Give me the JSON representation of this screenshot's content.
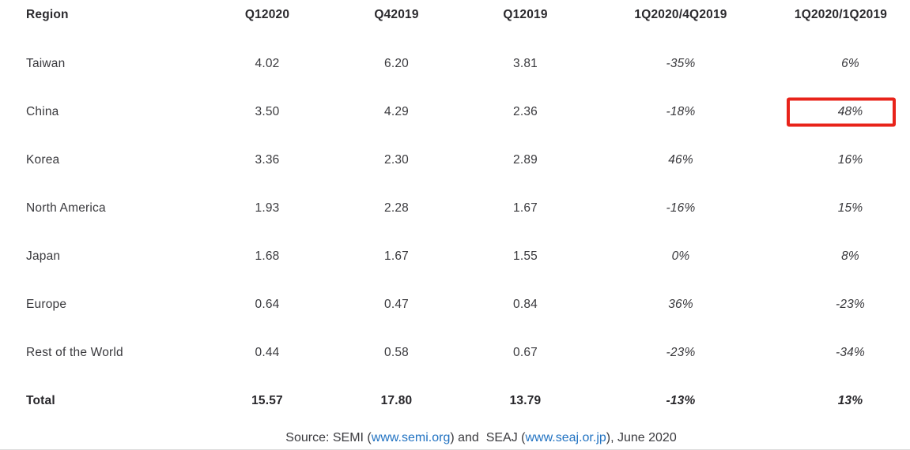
{
  "colors": {
    "highlight_box_red": "#e8231a",
    "link_blue": "#2273c2",
    "bottom_rule_gray": "#dcdcdc",
    "text_dark": "#2a292d"
  },
  "table": {
    "headers": [
      "Region",
      "Q12020",
      "Q42019",
      "Q12019",
      "1Q2020/4Q2019",
      "1Q2020/1Q2019"
    ],
    "rows": [
      {
        "region": "Taiwan",
        "q12020": "4.02",
        "q42019": "6.20",
        "q12019": "3.81",
        "chg_qoq": "-35%",
        "chg_yoy": "6%"
      },
      {
        "region": "China",
        "q12020": "3.50",
        "q42019": "4.29",
        "q12019": "2.36",
        "chg_qoq": "-18%",
        "chg_yoy": "48%",
        "highlight_yoy": true
      },
      {
        "region": "Korea",
        "q12020": "3.36",
        "q42019": "2.30",
        "q12019": "2.89",
        "chg_qoq": "46%",
        "chg_yoy": "16%"
      },
      {
        "region": "North America",
        "q12020": "1.93",
        "q42019": "2.28",
        "q12019": "1.67",
        "chg_qoq": "-16%",
        "chg_yoy": "15%"
      },
      {
        "region": "Japan",
        "q12020": "1.68",
        "q42019": "1.67",
        "q12019": "1.55",
        "chg_qoq": "0%",
        "chg_yoy": "8%"
      },
      {
        "region": "Europe",
        "q12020": "0.64",
        "q42019": "0.47",
        "q12019": "0.84",
        "chg_qoq": "36%",
        "chg_yoy": "-23%"
      },
      {
        "region": "Rest of the World",
        "q12020": "0.44",
        "q42019": "0.58",
        "q12019": "0.67",
        "chg_qoq": "-23%",
        "chg_yoy": "-34%"
      },
      {
        "region": "Total",
        "q12020": "15.57",
        "q42019": "17.80",
        "q12019": "13.79",
        "chg_qoq": "-13%",
        "chg_yoy": "13%",
        "is_total": true
      }
    ]
  },
  "source": {
    "prefix": "Source: SEMI (",
    "link1": "www.semi.org",
    "middle": ") and  SEAJ (",
    "link2": "www.seaj.or.jp",
    "suffix": "), June 2020"
  },
  "chart_data": {
    "type": "table",
    "columns": [
      "Region",
      "Q12020",
      "Q42019",
      "Q12019",
      "1Q2020/4Q2019",
      "1Q2020/1Q2019"
    ],
    "rows": [
      [
        "Taiwan",
        4.02,
        6.2,
        3.81,
        "-35%",
        "6%"
      ],
      [
        "China",
        3.5,
        4.29,
        2.36,
        "-18%",
        "48%"
      ],
      [
        "Korea",
        3.36,
        2.3,
        2.89,
        "46%",
        "16%"
      ],
      [
        "North America",
        1.93,
        2.28,
        1.67,
        "-16%",
        "15%"
      ],
      [
        "Japan",
        1.68,
        1.67,
        1.55,
        "0%",
        "8%"
      ],
      [
        "Europe",
        0.64,
        0.47,
        0.84,
        "36%",
        "-23%"
      ],
      [
        "Rest of the World",
        0.44,
        0.58,
        0.67,
        "-23%",
        "-34%"
      ],
      [
        "Total",
        15.57,
        17.8,
        13.79,
        "-13%",
        "13%"
      ]
    ],
    "annotations": [
      {
        "type": "highlight-box",
        "row": "China",
        "column": "1Q2020/1Q2019",
        "value": "48%",
        "color": "#e8231a"
      }
    ],
    "source_note": "Source: SEMI (www.semi.org) and SEAJ (www.seaj.or.jp), June 2020"
  }
}
